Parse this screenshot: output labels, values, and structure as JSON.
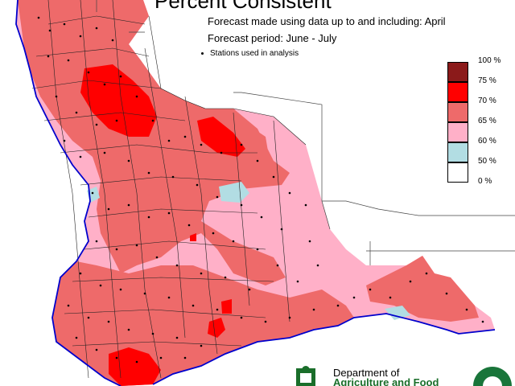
{
  "header": {
    "title": "Percent Consistent",
    "forecast_made": "Forecast made using data up to and including: April",
    "forecast_period": "Forecast period: June - July",
    "stations_note": "Stations used in analysis"
  },
  "legend": {
    "items": [
      {
        "label": "100 %",
        "color": null
      },
      {
        "label": "75 %",
        "color": "#8b1a1a"
      },
      {
        "label": "70 %",
        "color": "#ff0000"
      },
      {
        "label": "65 %",
        "color": "#ee6a6a"
      },
      {
        "label": "60 %",
        "color": "#ffb0c8"
      },
      {
        "label": "50 %",
        "color": "#b2dde3"
      },
      {
        "label": "0 %",
        "color": "#ffffff"
      }
    ]
  },
  "footer": {
    "dept_line": "Department of",
    "dept_name": "Agriculture and Food"
  },
  "colors": {
    "p75": "#ff0000",
    "p70": "#ee6a6a",
    "p65": "#ffb0c8",
    "p60": "#b2dde3",
    "p100": "#8b1a1a",
    "coast": "#0000cc",
    "boundary": "#222222"
  }
}
